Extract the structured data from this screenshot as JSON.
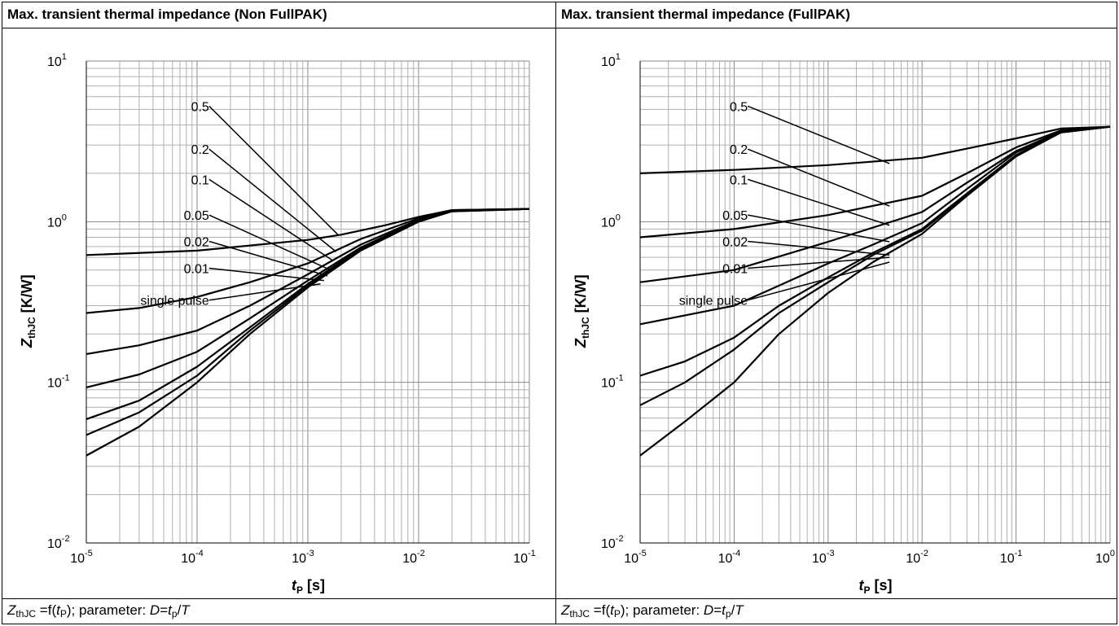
{
  "panels": [
    {
      "header": "Max. transient thermal impedance (Non FullPAK)",
      "footer": {
        "z": "Z",
        "z_sub": "thJC",
        "eq": " =f(",
        "tp": "t",
        "tp_sub": "P",
        "mid": "); parameter: ",
        "d": "D",
        "eq2": "=",
        "t2": "t",
        "t2_sub": "p",
        "slash": "/",
        "T": "T"
      }
    },
    {
      "header": "Max. transient thermal impedance (FullPAK)",
      "footer": {
        "z": "Z",
        "z_sub": "thJC",
        "eq": " =f(",
        "tp": "t",
        "tp_sub": "P",
        "mid": "); parameter: ",
        "d": "D",
        "eq2": "=",
        "t2": "t",
        "t2_sub": "p",
        "slash": "/",
        "T": "T"
      }
    }
  ],
  "chart_data": [
    {
      "type": "line",
      "title": "Max. transient thermal impedance (Non FullPAK)",
      "xlabel": "tp [s]",
      "ylabel": "ZthJC [K/W]",
      "xscale": "log",
      "yscale": "log",
      "xlim": [
        1e-05,
        0.1
      ],
      "ylim": [
        0.01,
        10
      ],
      "xtick_exponents": [
        -5,
        -4,
        -3,
        -2,
        -1
      ],
      "ytick_exponents": [
        -2,
        -1,
        0,
        1
      ],
      "grid": true,
      "series": [
        {
          "name": "0.5",
          "x": [
            1e-05,
            0.0001,
            0.001,
            0.002,
            0.005,
            0.01,
            0.02,
            0.1
          ],
          "y": [
            0.62,
            0.66,
            0.77,
            0.83,
            0.95,
            1.07,
            1.18,
            1.2
          ]
        },
        {
          "name": "0.2",
          "x": [
            1e-05,
            3e-05,
            0.0001,
            0.0003,
            0.001,
            0.003,
            0.01,
            0.02,
            0.1
          ],
          "y": [
            0.27,
            0.29,
            0.34,
            0.42,
            0.55,
            0.78,
            1.05,
            1.18,
            1.2
          ]
        },
        {
          "name": "0.1",
          "x": [
            1e-05,
            3e-05,
            0.0001,
            0.0003,
            0.001,
            0.003,
            0.01,
            0.02,
            0.1
          ],
          "y": [
            0.15,
            0.17,
            0.21,
            0.3,
            0.47,
            0.72,
            1.03,
            1.17,
            1.2
          ]
        },
        {
          "name": "0.05",
          "x": [
            1e-05,
            3e-05,
            0.0001,
            0.0003,
            0.001,
            0.003,
            0.01,
            0.02,
            0.1
          ],
          "y": [
            0.093,
            0.112,
            0.155,
            0.25,
            0.43,
            0.69,
            1.02,
            1.17,
            1.2
          ]
        },
        {
          "name": "0.02",
          "x": [
            1e-05,
            3e-05,
            0.0001,
            0.0003,
            0.001,
            0.003,
            0.01,
            0.02,
            0.1
          ],
          "y": [
            0.059,
            0.077,
            0.125,
            0.22,
            0.41,
            0.68,
            1.01,
            1.17,
            1.2
          ]
        },
        {
          "name": "0.01",
          "x": [
            1e-05,
            3e-05,
            0.0001,
            0.0003,
            0.001,
            0.003,
            0.01,
            0.02,
            0.1
          ],
          "y": [
            0.047,
            0.065,
            0.11,
            0.21,
            0.4,
            0.67,
            1.0,
            1.16,
            1.2
          ]
        },
        {
          "name": "single pulse",
          "x": [
            1e-05,
            3e-05,
            0.0001,
            0.0003,
            0.001,
            0.003,
            0.01,
            0.02,
            0.1
          ],
          "y": [
            0.035,
            0.053,
            0.1,
            0.2,
            0.39,
            0.66,
            1.0,
            1.16,
            1.2
          ]
        }
      ],
      "annotations": [
        {
          "text": "0.5",
          "x": 8e-05,
          "y": 5.0,
          "target_x": 0.0019,
          "target_y": 0.82
        },
        {
          "text": "0.2",
          "x": 8e-05,
          "y": 2.7,
          "target_x": 0.0018,
          "target_y": 0.65
        },
        {
          "text": "0.1",
          "x": 8e-05,
          "y": 1.75,
          "target_x": 0.0017,
          "target_y": 0.57
        },
        {
          "text": "0.05",
          "x": 8e-05,
          "y": 1.05,
          "target_x": 0.0016,
          "target_y": 0.5
        },
        {
          "text": "0.02",
          "x": 8e-05,
          "y": 0.72,
          "target_x": 0.0015,
          "target_y": 0.46
        },
        {
          "text": "0.01",
          "x": 8e-05,
          "y": 0.49,
          "target_x": 0.0014,
          "target_y": 0.43
        },
        {
          "text": "single pulse",
          "x": 8e-05,
          "y": 0.31,
          "target_x": 0.0013,
          "target_y": 0.41
        }
      ]
    },
    {
      "type": "line",
      "title": "Max. transient thermal impedance (FullPAK)",
      "xlabel": "tp [s]",
      "ylabel": "ZthJC [K/W]",
      "xscale": "log",
      "yscale": "log",
      "xlim": [
        1e-05,
        1
      ],
      "ylim": [
        0.01,
        10
      ],
      "xtick_exponents": [
        -5,
        -4,
        -3,
        -2,
        -1,
        0
      ],
      "ytick_exponents": [
        -2,
        -1,
        0,
        1
      ],
      "grid": true,
      "series": [
        {
          "name": "0.5",
          "x": [
            1e-05,
            0.0001,
            0.001,
            0.01,
            0.03,
            0.1,
            0.3,
            1
          ],
          "y": [
            2.0,
            2.1,
            2.25,
            2.5,
            2.85,
            3.3,
            3.8,
            3.9
          ]
        },
        {
          "name": "0.2",
          "x": [
            1e-05,
            0.0001,
            0.001,
            0.01,
            0.03,
            0.1,
            0.3,
            1
          ],
          "y": [
            0.8,
            0.9,
            1.1,
            1.45,
            2.0,
            2.9,
            3.7,
            3.9
          ]
        },
        {
          "name": "0.1",
          "x": [
            1e-05,
            0.0001,
            0.001,
            0.01,
            0.03,
            0.1,
            0.3,
            1
          ],
          "y": [
            0.42,
            0.5,
            0.75,
            1.15,
            1.75,
            2.75,
            3.65,
            3.9
          ]
        },
        {
          "name": "0.05",
          "x": [
            1e-05,
            0.0001,
            0.0003,
            0.001,
            0.003,
            0.01,
            0.03,
            0.1,
            0.3,
            1
          ],
          "y": [
            0.23,
            0.3,
            0.4,
            0.55,
            0.72,
            0.98,
            1.6,
            2.7,
            3.6,
            3.9
          ]
        },
        {
          "name": "0.02",
          "x": [
            1e-05,
            3e-05,
            0.0001,
            0.0003,
            0.001,
            0.003,
            0.01,
            0.03,
            0.1,
            0.3,
            1
          ],
          "y": [
            0.11,
            0.135,
            0.19,
            0.3,
            0.45,
            0.64,
            0.9,
            1.5,
            2.6,
            3.6,
            3.9
          ]
        },
        {
          "name": "0.01",
          "x": [
            1e-05,
            3e-05,
            0.0001,
            0.0003,
            0.001,
            0.003,
            0.01,
            0.03,
            0.1,
            0.3,
            1
          ],
          "y": [
            0.072,
            0.1,
            0.16,
            0.27,
            0.42,
            0.62,
            0.88,
            1.48,
            2.58,
            3.6,
            3.9
          ]
        },
        {
          "name": "single pulse",
          "x": [
            1e-05,
            3e-05,
            0.0001,
            0.0003,
            0.001,
            0.003,
            0.01,
            0.03,
            0.1,
            0.3,
            1
          ],
          "y": [
            0.035,
            0.057,
            0.1,
            0.2,
            0.36,
            0.56,
            0.84,
            1.45,
            2.55,
            3.6,
            3.9
          ]
        }
      ],
      "annotations": [
        {
          "text": "0.5",
          "x": 8e-05,
          "y": 5.0,
          "target_x": 0.0045,
          "target_y": 2.3
        },
        {
          "text": "0.2",
          "x": 8e-05,
          "y": 2.7,
          "target_x": 0.0045,
          "target_y": 1.25
        },
        {
          "text": "0.1",
          "x": 8e-05,
          "y": 1.75,
          "target_x": 0.0045,
          "target_y": 0.95
        },
        {
          "text": "0.05",
          "x": 8e-05,
          "y": 1.05,
          "target_x": 0.0045,
          "target_y": 0.75
        },
        {
          "text": "0.02",
          "x": 8e-05,
          "y": 0.72,
          "target_x": 0.0045,
          "target_y": 0.62
        },
        {
          "text": "0.01",
          "x": 8e-05,
          "y": 0.49,
          "target_x": 0.0045,
          "target_y": 0.6
        },
        {
          "text": "single pulse",
          "x": 8e-05,
          "y": 0.31,
          "target_x": 0.0045,
          "target_y": 0.56
        }
      ]
    }
  ],
  "axis_labels": {
    "x_main": "t",
    "x_sub": "P",
    "x_unit": " [s]",
    "y_main": "Z",
    "y_sub": "thJC",
    "y_unit": " [K/W]",
    "tick_base": "10"
  }
}
